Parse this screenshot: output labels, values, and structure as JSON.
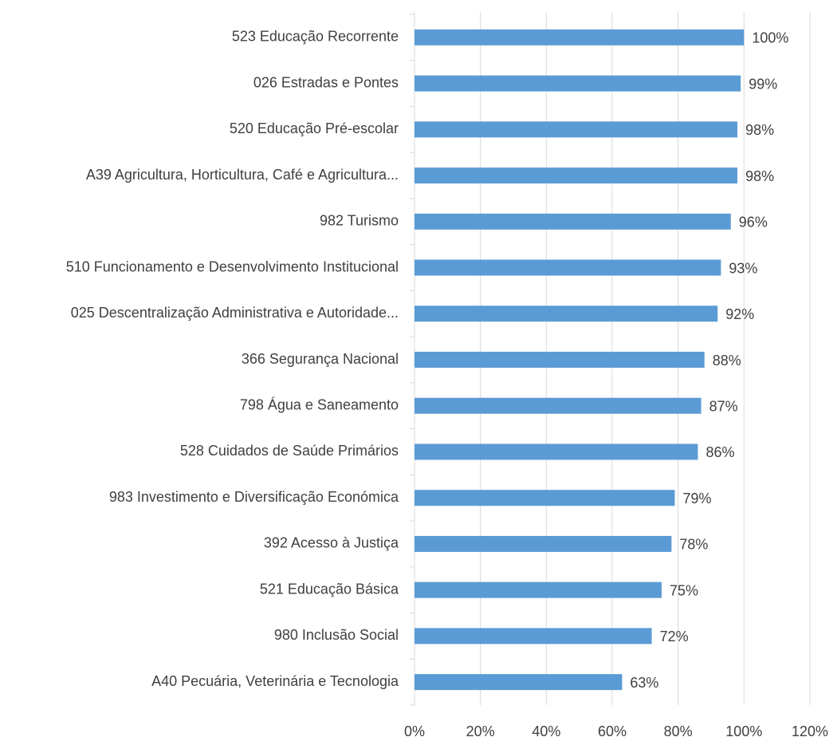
{
  "chart_data": {
    "type": "barh",
    "categories": [
      "523 Educação Recorrente",
      "026 Estradas e Pontes",
      "520 Educação Pré-escolar",
      "A39 Agricultura, Horticultura, Café e Agricultura...",
      "982 Turismo",
      "510 Funcionamento e Desenvolvimento Institucional",
      "025 Descentralização Administrativa e Autoridade...",
      "366 Segurança Nacional",
      "798 Água e Saneamento",
      "528 Cuidados de Saúde Primários",
      "983 Investimento e Diversificação Económica",
      "392 Acesso à Justiça",
      "521 Educação Básica",
      "980 Inclusão Social",
      "A40 Pecuária, Veterinária e Tecnologia"
    ],
    "values": [
      100,
      99,
      98,
      98,
      96,
      93,
      92,
      88,
      87,
      86,
      79,
      78,
      75,
      72,
      63
    ],
    "value_labels": [
      "100%",
      "99%",
      "98%",
      "98%",
      "96%",
      "93%",
      "92%",
      "88%",
      "87%",
      "86%",
      "79%",
      "78%",
      "75%",
      "72%",
      "63%"
    ],
    "color": "#5b9bd5",
    "xlim": [
      0,
      120
    ],
    "xticks": [
      {
        "value": 0,
        "label": "0%"
      },
      {
        "value": 20,
        "label": "20%"
      },
      {
        "value": 40,
        "label": "40%"
      },
      {
        "value": 60,
        "label": "60%"
      },
      {
        "value": 80,
        "label": "80%"
      },
      {
        "value": 100,
        "label": "100%"
      },
      {
        "value": 120,
        "label": "120%"
      }
    ],
    "grid": true
  }
}
